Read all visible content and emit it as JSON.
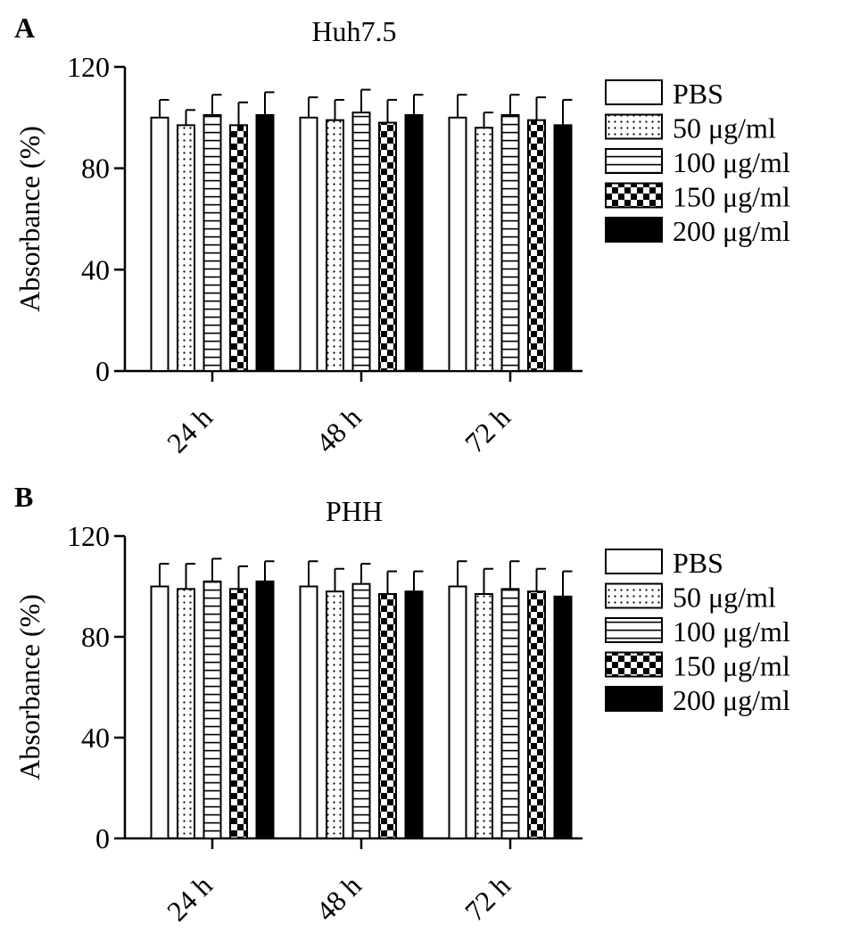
{
  "chart_data": [
    {
      "type": "bar",
      "panel_label": "A",
      "title": "Huh7.5",
      "ylabel": "Absorbance (%)",
      "xlabel": "",
      "ylim": [
        0,
        120
      ],
      "yticks": [
        0,
        40,
        80,
        120
      ],
      "categories": [
        "24 h",
        "48 h",
        "72 h"
      ],
      "series": [
        {
          "name": "PBS",
          "values": [
            100,
            100,
            100
          ],
          "errors": [
            7,
            8,
            9
          ]
        },
        {
          "name": "50 μg/ml",
          "values": [
            97,
            99,
            96
          ],
          "errors": [
            6,
            8,
            6
          ]
        },
        {
          "name": "100 μg/ml",
          "values": [
            101,
            102,
            101
          ],
          "errors": [
            8,
            9,
            8
          ]
        },
        {
          "name": "150 μg/ml",
          "values": [
            97,
            98,
            99
          ],
          "errors": [
            9,
            9,
            9
          ]
        },
        {
          "name": "200 μg/ml",
          "values": [
            101,
            101,
            97
          ],
          "errors": [
            9,
            8,
            10
          ]
        }
      ],
      "legend": "right",
      "grid": false
    },
    {
      "type": "bar",
      "panel_label": "B",
      "title": "PHH",
      "ylabel": "Absorbance (%)",
      "xlabel": "",
      "ylim": [
        0,
        120
      ],
      "yticks": [
        0,
        40,
        80,
        120
      ],
      "categories": [
        "24 h",
        "48 h",
        "72 h"
      ],
      "series": [
        {
          "name": "PBS",
          "values": [
            100,
            100,
            100
          ],
          "errors": [
            9,
            10,
            10
          ]
        },
        {
          "name": "50 μg/ml",
          "values": [
            99,
            98,
            97
          ],
          "errors": [
            10,
            9,
            10
          ]
        },
        {
          "name": "100 μg/ml",
          "values": [
            102,
            101,
            99
          ],
          "errors": [
            9,
            8,
            11
          ]
        },
        {
          "name": "150 μg/ml",
          "values": [
            99,
            97,
            98
          ],
          "errors": [
            9,
            9,
            9
          ]
        },
        {
          "name": "200 μg/ml",
          "values": [
            102,
            98,
            96
          ],
          "errors": [
            8,
            8,
            10
          ]
        }
      ],
      "legend": "right",
      "grid": false
    }
  ],
  "style": {
    "stroke": "#000000",
    "background": "#ffffff",
    "patterns": [
      "none",
      "dots",
      "hlines",
      "checker",
      "solid"
    ]
  }
}
